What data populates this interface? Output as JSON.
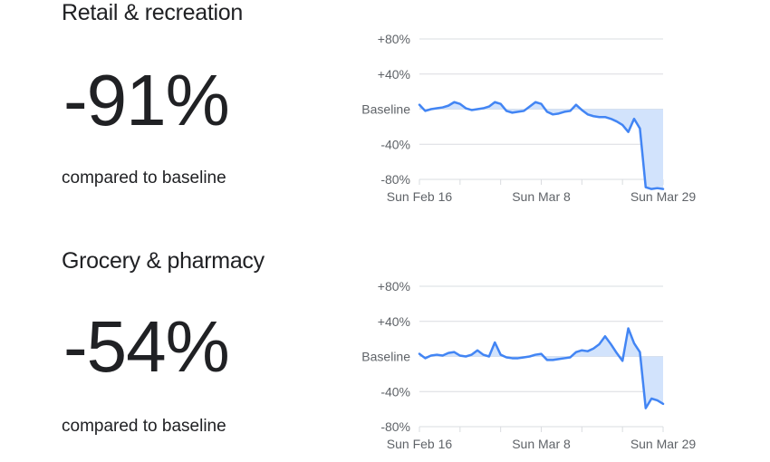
{
  "page": {
    "background": "#ffffff"
  },
  "sections": [
    {
      "title": "Retail & recreation",
      "value": "-91%",
      "caption": "compared to baseline"
    },
    {
      "title": "Grocery & pharmacy",
      "value": "-54%",
      "caption": "compared to baseline"
    }
  ],
  "chart_data": [
    {
      "type": "area",
      "title": "Retail & recreation",
      "unit": "% change from baseline",
      "baseline": 0,
      "latest_value_pct": -91,
      "ylim": [
        -100,
        100
      ],
      "grid_step_pct": 40,
      "y_tick_labels": [
        "+80%",
        "+40%",
        "Baseline",
        "-40%",
        "-80%"
      ],
      "x_tick_labels": [
        "Sun Feb 16",
        "Sun Mar 8",
        "Sun Mar 29"
      ],
      "x_tick_interval_days": 7,
      "values": [
        5,
        -2,
        0,
        1,
        2,
        4,
        8,
        6,
        1,
        -1,
        0,
        1,
        3,
        8,
        6,
        -2,
        -4,
        -3,
        -2,
        3,
        8,
        6,
        -3,
        -6,
        -5,
        -3,
        -2,
        5,
        -1,
        -6,
        -8,
        -9,
        -9,
        -11,
        -14,
        -18,
        -26,
        -11,
        -22,
        -89,
        -91,
        -90,
        -91
      ],
      "line_color": "#4285f4",
      "fill_color": "#d2e3fc"
    },
    {
      "type": "area",
      "title": "Grocery & pharmacy",
      "unit": "% change from baseline",
      "baseline": 0,
      "latest_value_pct": -54,
      "ylim": [
        -100,
        100
      ],
      "grid_step_pct": 40,
      "y_tick_labels": [
        "+80%",
        "+40%",
        "Baseline",
        "-40%",
        "-80%"
      ],
      "x_tick_labels": [
        "Sun Feb 16",
        "Sun Mar 8",
        "Sun Mar 29"
      ],
      "x_tick_interval_days": 7,
      "values": [
        3,
        -2,
        1,
        2,
        1,
        4,
        5,
        1,
        0,
        2,
        7,
        2,
        0,
        16,
        2,
        -1,
        -2,
        -2,
        -1,
        0,
        2,
        3,
        -4,
        -4,
        -3,
        -2,
        -1,
        5,
        7,
        6,
        9,
        14,
        23,
        14,
        4,
        -5,
        32,
        15,
        5,
        -59,
        -48,
        -50,
        -54
      ],
      "line_color": "#4285f4",
      "fill_color": "#d2e3fc"
    }
  ]
}
